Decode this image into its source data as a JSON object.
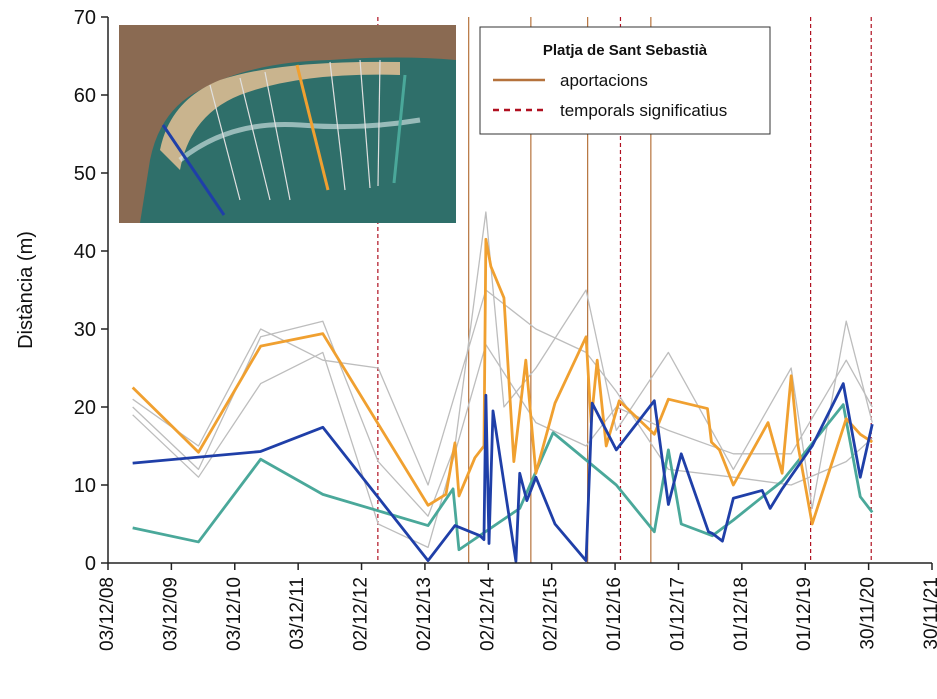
{
  "chart_data": {
    "type": "line",
    "y_label": "Distància (m)",
    "ylim": [
      0,
      70
    ],
    "yticks": [
      0,
      10,
      20,
      30,
      40,
      50,
      60,
      70
    ],
    "xlim": [
      "2008-12-03",
      "2021-11-30"
    ],
    "xticks": [
      {
        "value": "2008-12-03",
        "label": "03/12/08"
      },
      {
        "value": "2009-12-03",
        "label": "03/12/09"
      },
      {
        "value": "2010-12-03",
        "label": "03/12/10"
      },
      {
        "value": "2011-12-03",
        "label": "03/12/11"
      },
      {
        "value": "2012-12-02",
        "label": "02/12/12"
      },
      {
        "value": "2013-12-02",
        "label": "02/12/13"
      },
      {
        "value": "2014-12-02",
        "label": "02/12/14"
      },
      {
        "value": "2015-12-02",
        "label": "02/12/15"
      },
      {
        "value": "2016-12-01",
        "label": "01/12/16"
      },
      {
        "value": "2017-12-01",
        "label": "01/12/17"
      },
      {
        "value": "2018-12-01",
        "label": "01/12/18"
      },
      {
        "value": "2019-12-01",
        "label": "01/12/19"
      },
      {
        "value": "2020-11-30",
        "label": "30/11/20"
      },
      {
        "value": "2021-11-30",
        "label": "30/11/21"
      }
    ],
    "legend_title": "Platja de Sant Sebastià",
    "vlines": [
      {
        "name": "aportacions",
        "color": "#b5723c",
        "dashed": false,
        "x": [
          "2014-08-11",
          "2015-08-04",
          "2016-06-26",
          "2017-06-25"
        ]
      },
      {
        "name": "temporals significatius",
        "color": "#b01020",
        "dashed": true,
        "x": [
          "2013-03-06",
          "2017-01-01",
          "2020-01-01",
          "2020-12-15"
        ]
      }
    ],
    "series": [
      {
        "color": "#bdbdbd",
        "x": [
          "2009-04-24",
          "2010-05-08",
          "2011-05-01",
          "2012-04-23",
          "2013-03-08",
          "2013-12-20",
          "2014-05-24",
          "2014-11-18",
          "2015-03-02",
          "2015-09-02",
          "2016-06-17",
          "2016-12-08",
          "2017-10-04",
          "2018-10-13",
          "2019-09-11",
          "2020-01-10",
          "2020-07-24",
          "2020-12-21"
        ],
        "values": [
          20,
          12,
          29,
          31,
          13,
          6,
          15,
          45,
          20,
          25,
          35,
          17,
          27,
          12,
          25,
          7,
          31,
          18
        ]
      },
      {
        "color": "#bdbdbd",
        "x": [
          "2009-04-24",
          "2010-05-08",
          "2011-05-01",
          "2012-04-23",
          "2013-03-08",
          "2013-12-20",
          "2014-11-18",
          "2015-09-02",
          "2016-06-17",
          "2016-12-08",
          "2017-10-04",
          "2018-10-13",
          "2019-09-11",
          "2020-07-24",
          "2020-12-21"
        ],
        "values": [
          19,
          11,
          23,
          27,
          5,
          2,
          28,
          18,
          15,
          20,
          17,
          14,
          14,
          26,
          20
        ]
      },
      {
        "color": "#bdbdbd",
        "x": [
          "2009-04-24",
          "2010-05-08",
          "2011-05-01",
          "2012-04-23",
          "2013-03-08",
          "2013-12-20",
          "2014-11-18",
          "2015-09-02",
          "2016-06-17",
          "2016-12-08",
          "2017-10-04",
          "2018-10-13",
          "2019-09-11",
          "2020-07-24",
          "2020-12-21"
        ],
        "values": [
          21,
          15,
          30,
          26,
          25,
          10,
          35,
          30,
          27,
          22,
          12,
          11,
          10,
          13,
          16
        ]
      },
      {
        "color": "#4aa89a",
        "x": [
          "2009-04-24",
          "2010-05-08",
          "2011-05-01",
          "2012-04-23",
          "2013-12-20",
          "2014-05-13",
          "2014-06-16",
          "2015-06-01",
          "2015-12-10",
          "2016-12-08",
          "2017-07-15",
          "2017-10-04",
          "2017-12-17",
          "2018-06-14",
          "2018-10-13",
          "2019-07-21",
          "2020-07-07",
          "2020-10-13",
          "2020-12-21"
        ],
        "values": [
          4.5,
          2.7,
          13.3,
          8.8,
          4.8,
          9.5,
          1.7,
          7,
          16.7,
          10,
          4,
          14.5,
          5,
          3.5,
          5.5,
          10.5,
          20.3,
          8.5,
          6.5
        ]
      },
      {
        "color": "#f0a030",
        "x": [
          "2009-04-24",
          "2010-05-08",
          "2011-05-01",
          "2012-04-23",
          "2013-12-20",
          "2014-04-02",
          "2014-05-24",
          "2014-06-16",
          "2014-09-16",
          "2014-11-07",
          "2014-11-18",
          "2014-12-17",
          "2015-03-02",
          "2015-04-28",
          "2015-07-06",
          "2015-09-02",
          "2015-12-21",
          "2016-06-17",
          "2016-07-16",
          "2016-08-20",
          "2016-10-11",
          "2016-12-25",
          "2017-07-15",
          "2017-10-04",
          "2018-05-17",
          "2018-06-09",
          "2018-07-25",
          "2018-10-13",
          "2019-05-01",
          "2019-07-21",
          "2019-09-11",
          "2019-10-21",
          "2020-01-10",
          "2020-07-24",
          "2020-10-13",
          "2020-12-21"
        ],
        "values": [
          22.5,
          14.2,
          27.8,
          29.4,
          7.4,
          8.8,
          15.4,
          8.6,
          13.5,
          15,
          41.5,
          38,
          34,
          13,
          26,
          11.5,
          20.5,
          29,
          18,
          26,
          15,
          20.8,
          16.5,
          21,
          19.8,
          15.5,
          14.5,
          10,
          18,
          11.5,
          24,
          15,
          5,
          18.5,
          16.5,
          15.5
        ]
      },
      {
        "color": "#1f3fa8",
        "x": [
          "2009-04-24",
          "2011-05-01",
          "2012-04-23",
          "2013-12-20",
          "2014-05-24",
          "2014-10-15",
          "2014-11-07",
          "2014-11-18",
          "2014-12-06",
          "2014-12-29",
          "2015-05-10",
          "2015-06-01",
          "2015-07-12",
          "2015-09-02",
          "2015-12-21",
          "2016-06-17",
          "2016-07-22",
          "2016-12-08",
          "2017-07-15",
          "2017-10-04",
          "2017-12-17",
          "2018-05-23",
          "2018-06-14",
          "2018-08-11",
          "2018-10-13",
          "2019-03-28",
          "2019-05-13",
          "2019-07-21",
          "2020-01-10",
          "2020-07-07",
          "2020-10-13",
          "2020-12-21"
        ],
        "values": [
          12.8,
          14.3,
          17.4,
          0.3,
          4.8,
          3.5,
          3,
          21.5,
          2.5,
          19.5,
          0.2,
          11.5,
          8,
          11,
          5,
          0.3,
          20.5,
          14.5,
          20.8,
          7.5,
          14,
          4,
          3.8,
          2.8,
          8.3,
          9.3,
          7,
          9.5,
          15,
          23,
          11,
          17.8
        ]
      }
    ]
  }
}
